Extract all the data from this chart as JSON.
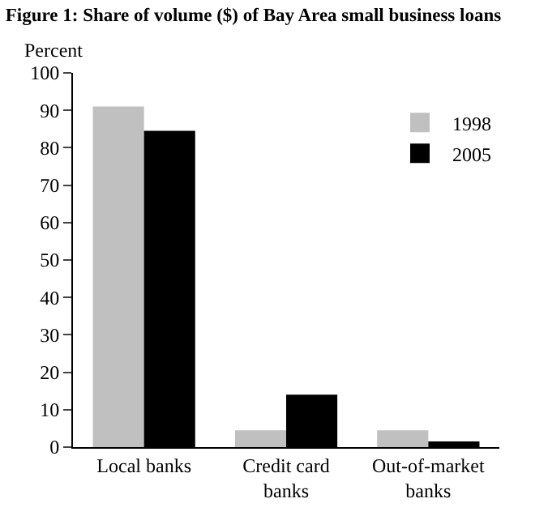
{
  "chart_data": {
    "type": "bar",
    "title": "Figure 1: Share of volume ($) of Bay Area small business loans",
    "ylabel": "Percent",
    "categories": [
      "Local banks",
      "Credit card banks",
      "Out-of-market banks"
    ],
    "series": [
      {
        "name": "1998",
        "color": "#c0c0c0",
        "values": [
          91,
          4.5,
          4.5
        ]
      },
      {
        "name": "2005",
        "color": "#000000",
        "values": [
          84.5,
          14,
          1.5
        ]
      }
    ],
    "ylim": [
      0,
      100
    ],
    "yticks": [
      0,
      10,
      20,
      30,
      40,
      50,
      60,
      70,
      80,
      90,
      100
    ],
    "legend": "top right"
  }
}
